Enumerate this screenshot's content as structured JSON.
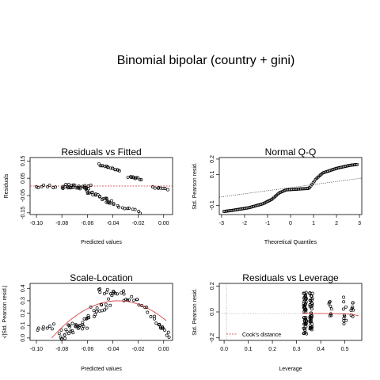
{
  "title": "Binomial bipolar (country + gini)",
  "chart_data": [
    {
      "type": "scatter",
      "title": "Residuals vs Fitted",
      "xlabel": "Predicted values",
      "ylabel": "Residuals",
      "xlim": [
        -0.105,
        0.007
      ],
      "ylim": [
        -0.16,
        0.17
      ],
      "xticks": [
        "-0.10",
        "-0.08",
        "-0.06",
        "-0.04",
        "-0.02",
        "0.00"
      ],
      "yticks": [
        "-0.15",
        "-0.05",
        "0.05",
        "0.15"
      ],
      "reference_line": {
        "y": 0,
        "style": "dashed",
        "color": "#d23030"
      }
    },
    {
      "type": "scatter",
      "title": "Normal Q-Q",
      "xlabel": "Theoretical Quantiles",
      "ylabel": "Std. Pearson resid.",
      "xlim": [
        -3.1,
        3.1
      ],
      "ylim": [
        -0.16,
        0.21
      ],
      "xticks": [
        "-3",
        "-2",
        "-1",
        "0",
        "1",
        "2",
        "3"
      ],
      "yticks": [
        "-0.1",
        "0.1",
        "0.2"
      ],
      "reference_line": {
        "from": [
          -3,
          -0.075
        ],
        "to": [
          3,
          0.05
        ],
        "style": "dotted"
      }
    },
    {
      "type": "scatter",
      "title": "Scale-Location",
      "xlabel": "Predicted values",
      "ylabel": "√|Std. Pearson resid.|",
      "xlim": [
        -0.105,
        0.007
      ],
      "ylim": [
        -0.02,
        0.44
      ],
      "xticks": [
        "-0.10",
        "-0.08",
        "-0.06",
        "-0.04",
        "-0.02",
        "0.00"
      ],
      "yticks": [
        "0.0",
        "0.1",
        "0.2",
        "0.3",
        "0.4"
      ],
      "smoother_color": "#d23030"
    },
    {
      "type": "scatter",
      "title": "Residuals vs Leverage",
      "xlabel": "Leverage",
      "ylabel": "Std. Pearson resid.",
      "xlim": [
        -0.02,
        0.57
      ],
      "ylim": [
        -0.22,
        0.22
      ],
      "xticks": [
        "0.0",
        "0.1",
        "0.2",
        "0.3",
        "0.4",
        "0.5"
      ],
      "yticks": [
        "-0.2",
        "0.0",
        "0.2"
      ],
      "legend": {
        "label": "Cook's distance",
        "position": "bottom-left"
      }
    }
  ]
}
